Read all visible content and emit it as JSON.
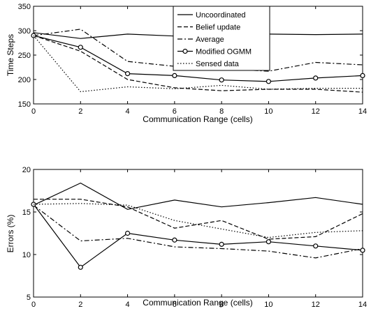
{
  "chart_data": [
    {
      "type": "line",
      "title": "",
      "xlabel": "Communication Range (cells)",
      "ylabel": "Time Steps",
      "xlim": [
        0,
        14
      ],
      "ylim": [
        150,
        350
      ],
      "x_ticks": [
        0,
        2,
        4,
        6,
        8,
        10,
        12,
        14
      ],
      "y_ticks": [
        150,
        200,
        250,
        300,
        350
      ],
      "grid": false,
      "legend_position": "top-right",
      "series": [
        {
          "name": "Uncoordinated",
          "style": "solid",
          "marker": "none",
          "x": [
            0,
            2,
            4,
            6,
            8,
            10,
            12,
            14
          ],
          "values": [
            296,
            284,
            293,
            289,
            294,
            293,
            292,
            293
          ]
        },
        {
          "name": "Belief update",
          "style": "dashed",
          "marker": "none",
          "x": [
            0,
            2,
            4,
            6,
            8,
            10,
            12,
            14
          ],
          "values": [
            290,
            258,
            200,
            183,
            177,
            180,
            180,
            174
          ]
        },
        {
          "name": "Average",
          "style": "dashdot",
          "marker": "none",
          "x": [
            0,
            2,
            4,
            6,
            8,
            10,
            12,
            14
          ],
          "values": [
            290,
            303,
            237,
            227,
            222,
            217,
            235,
            230
          ]
        },
        {
          "name": "Modified OGMM",
          "style": "solid",
          "marker": "circle",
          "x": [
            0,
            2,
            4,
            6,
            8,
            10,
            12,
            14
          ],
          "values": [
            290,
            266,
            212,
            208,
            199,
            196,
            203,
            208
          ]
        },
        {
          "name": "Sensed data",
          "style": "dotted",
          "marker": "none",
          "x": [
            0,
            2,
            4,
            6,
            8,
            10,
            12,
            14
          ],
          "values": [
            290,
            175,
            185,
            181,
            188,
            180,
            182,
            182
          ]
        }
      ]
    },
    {
      "type": "line",
      "title": "",
      "xlabel": "Communication Range (cells)",
      "ylabel": "Errors (%)",
      "xlim": [
        0,
        14
      ],
      "ylim": [
        5,
        20
      ],
      "x_ticks": [
        0,
        2,
        4,
        6,
        8,
        10,
        12,
        14
      ],
      "y_ticks": [
        5,
        10,
        15,
        20
      ],
      "grid": false,
      "series": [
        {
          "style": "solid",
          "marker": "none",
          "x": [
            0,
            2,
            4,
            6,
            8,
            10,
            12,
            14
          ],
          "values": [
            15.8,
            18.4,
            15.3,
            16.4,
            15.6,
            16.1,
            16.7,
            15.9
          ]
        },
        {
          "style": "dashed",
          "marker": "none",
          "x": [
            0,
            2,
            4,
            6,
            8,
            10,
            12,
            14
          ],
          "values": [
            16.5,
            16.5,
            15.6,
            13.1,
            14.0,
            11.8,
            12.1,
            14.8
          ]
        },
        {
          "style": "dashdot",
          "marker": "none",
          "x": [
            0,
            2,
            4,
            6,
            8,
            10,
            12,
            14
          ],
          "values": [
            15.8,
            11.6,
            11.9,
            10.9,
            10.7,
            10.4,
            9.6,
            10.7
          ]
        },
        {
          "style": "solid",
          "marker": "circle",
          "x": [
            0,
            2,
            4,
            6,
            8,
            10,
            12,
            14
          ],
          "values": [
            15.9,
            8.5,
            12.5,
            11.7,
            11.2,
            11.5,
            11.0,
            10.5
          ]
        },
        {
          "style": "dotted",
          "marker": "none",
          "x": [
            0,
            2,
            4,
            6,
            8,
            10,
            12,
            14
          ],
          "values": [
            15.9,
            16.0,
            15.8,
            14.0,
            13.0,
            12.0,
            12.6,
            12.8
          ]
        }
      ]
    }
  ]
}
